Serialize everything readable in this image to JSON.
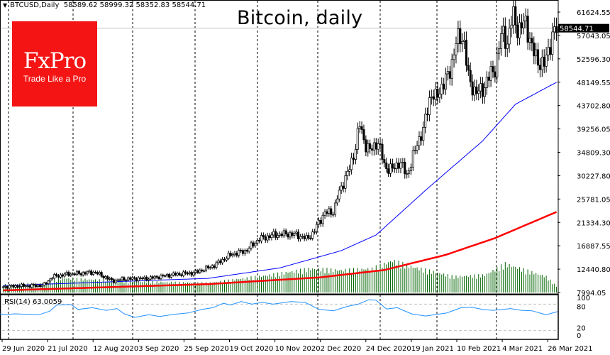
{
  "header": {
    "symbol": "BTCUSD,Daily",
    "open": "58589.62",
    "high": "58999.32",
    "low": "58352.83",
    "close": "58544.71"
  },
  "title": "Bitcoin, daily",
  "logo": {
    "brand": "FxPro",
    "tagline": "Trade Like a Pro"
  },
  "rsi": {
    "label": "RSI(14) 63.0059",
    "levels": [
      "100",
      "80",
      "20",
      "0"
    ]
  },
  "colors": {
    "ma50": "#0000ff",
    "ma200": "#ff0000",
    "volume": "#006400",
    "rsi": "#1e90ff",
    "logo": "#f41414"
  },
  "chart_data": {
    "type": "candlestick",
    "title": "Bitcoin, daily",
    "ylim": [
      7994.05,
      61624.55
    ],
    "y_ticks": [
      "61624.55",
      "57043.05",
      "52596.30",
      "48149.55",
      "43702.80",
      "39256.05",
      "34809.30",
      "30227.80",
      "25781.05",
      "21334.30",
      "16887.55",
      "12440.80",
      "7994.05"
    ],
    "current_price": "58544.71",
    "x_ticks": [
      "29 Jun 2020",
      "21 Jul 2020",
      "12 Aug 2020",
      "3 Sep 2020",
      "25 Sep 2020",
      "19 Oct 2020",
      "10 Nov 2020",
      "2 Dec 2020",
      "24 Dec 2020",
      "19 Jan 2021",
      "10 Feb 2021",
      "4 Mar 2021",
      "26 Mar 2021"
    ],
    "days": 271,
    "close_keypoints": [
      [
        0,
        9100
      ],
      [
        10,
        9250
      ],
      [
        22,
        9350
      ],
      [
        27,
        11000
      ],
      [
        35,
        11500
      ],
      [
        44,
        11700
      ],
      [
        50,
        11900
      ],
      [
        60,
        10200
      ],
      [
        66,
        10600
      ],
      [
        80,
        10700
      ],
      [
        90,
        11300
      ],
      [
        105,
        11800
      ],
      [
        115,
        13100
      ],
      [
        125,
        15300
      ],
      [
        133,
        16000
      ],
      [
        140,
        18200
      ],
      [
        148,
        19000
      ],
      [
        155,
        19200
      ],
      [
        160,
        19100
      ],
      [
        166,
        18300
      ],
      [
        170,
        19400
      ],
      [
        172,
        21000
      ],
      [
        176,
        23200
      ],
      [
        181,
        23500
      ],
      [
        183,
        26300
      ],
      [
        186,
        28900
      ],
      [
        190,
        32000
      ],
      [
        193,
        36000
      ],
      [
        195,
        40300
      ],
      [
        198,
        36500
      ],
      [
        201,
        35000
      ],
      [
        205,
        37000
      ],
      [
        209,
        32000
      ],
      [
        213,
        31500
      ],
      [
        217,
        33000
      ],
      [
        221,
        30500
      ],
      [
        224,
        33500
      ],
      [
        227,
        37000
      ],
      [
        230,
        39000
      ],
      [
        234,
        46200
      ],
      [
        237,
        45000
      ],
      [
        240,
        47500
      ],
      [
        244,
        49500
      ],
      [
        248,
        56000
      ],
      [
        252,
        57000
      ],
      [
        255,
        48000
      ],
      [
        259,
        46500
      ],
      [
        262,
        46300
      ],
      [
        265,
        48900
      ],
      [
        269,
        50500
      ],
      [
        273,
        57800
      ],
      [
        276,
        55800
      ],
      [
        279,
        61200
      ],
      [
        282,
        58100
      ],
      [
        286,
        59800
      ],
      [
        290,
        54000
      ],
      [
        293,
        52300
      ],
      [
        296,
        51300
      ],
      [
        299,
        55100
      ],
      [
        301,
        57600
      ],
      [
        304,
        58544.71
      ]
    ],
    "ma50_keypoints": [
      [
        0,
        9300
      ],
      [
        100,
        10700
      ],
      [
        135,
        12700
      ],
      [
        165,
        16000
      ],
      [
        182,
        19000
      ],
      [
        206,
        27500
      ],
      [
        234,
        37000
      ],
      [
        250,
        44000
      ],
      [
        270,
        48200
      ]
    ],
    "ma200_keypoints": [
      [
        0,
        8400
      ],
      [
        100,
        9600
      ],
      [
        155,
        10900
      ],
      [
        186,
        12300
      ],
      [
        216,
        15200
      ],
      [
        240,
        18400
      ],
      [
        270,
        23400
      ]
    ],
    "volume_keypoints": [
      [
        0,
        0.25
      ],
      [
        20,
        0.3
      ],
      [
        30,
        0.45
      ],
      [
        60,
        0.35
      ],
      [
        100,
        0.3
      ],
      [
        130,
        0.55
      ],
      [
        150,
        0.75
      ],
      [
        165,
        0.7
      ],
      [
        180,
        0.75
      ],
      [
        190,
        1.0
      ],
      [
        200,
        0.8
      ],
      [
        220,
        0.5
      ],
      [
        235,
        0.55
      ],
      [
        245,
        0.9
      ],
      [
        255,
        0.7
      ],
      [
        265,
        0.5
      ],
      [
        270,
        0.2
      ]
    ],
    "rsi_keypoints": [
      [
        0,
        58
      ],
      [
        8,
        56
      ],
      [
        20,
        58
      ],
      [
        55,
        56
      ],
      [
        70,
        64
      ],
      [
        80,
        78
      ],
      [
        100,
        79
      ],
      [
        110,
        68
      ],
      [
        130,
        72
      ],
      [
        150,
        66
      ],
      [
        165,
        70
      ],
      [
        175,
        58
      ],
      [
        190,
        50
      ],
      [
        210,
        56
      ],
      [
        225,
        52
      ],
      [
        245,
        57
      ],
      [
        265,
        60
      ],
      [
        285,
        68
      ],
      [
        300,
        72
      ],
      [
        315,
        82
      ],
      [
        325,
        78
      ],
      [
        340,
        86
      ],
      [
        355,
        80
      ],
      [
        370,
        84
      ],
      [
        385,
        80
      ],
      [
        410,
        86
      ],
      [
        430,
        84
      ],
      [
        450,
        68
      ],
      [
        470,
        65
      ],
      [
        490,
        75
      ],
      [
        505,
        80
      ],
      [
        520,
        90
      ],
      [
        530,
        89
      ],
      [
        545,
        69
      ],
      [
        560,
        72
      ],
      [
        580,
        58
      ],
      [
        600,
        53
      ],
      [
        616,
        57
      ],
      [
        630,
        60
      ],
      [
        650,
        72
      ],
      [
        665,
        73
      ],
      [
        680,
        68
      ],
      [
        695,
        66
      ],
      [
        720,
        70
      ],
      [
        735,
        66
      ],
      [
        750,
        65
      ],
      [
        770,
        56
      ],
      [
        786,
        63
      ]
    ]
  }
}
